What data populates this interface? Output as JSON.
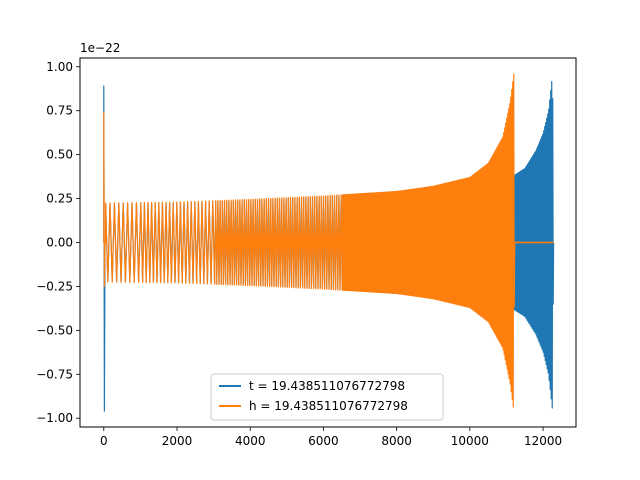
{
  "chart_data": {
    "type": "line",
    "title": "",
    "xlabel": "",
    "ylabel": "",
    "y_offset_label": "1e−22",
    "xlim": [
      -650,
      12900
    ],
    "ylim": [
      -1.05,
      1.05
    ],
    "x_ticks": [
      0,
      2000,
      4000,
      6000,
      8000,
      10000,
      12000
    ],
    "x_tick_labels": [
      "0",
      "2000",
      "4000",
      "6000",
      "8000",
      "10000",
      "12000"
    ],
    "y_ticks": [
      1.0,
      0.75,
      0.5,
      0.25,
      0.0,
      -0.25,
      -0.5,
      -0.75,
      -1.0
    ],
    "y_tick_labels": [
      "1.00",
      "0.75",
      "0.50",
      "0.25",
      "0.00",
      "−0.25",
      "−0.50",
      "−0.75",
      "−1.00"
    ],
    "grid": false,
    "legend_position": "lower-center",
    "series": [
      {
        "name": "t = 19.438511076772798",
        "color": "#1f77b4",
        "x_start": 0,
        "x_end": 12288,
        "spike_at_start": {
          "x": 0,
          "max": 0.89,
          "min": -0.96
        },
        "envelope": [
          [
            50,
            0.22
          ],
          [
            2000,
            0.225
          ],
          [
            4000,
            0.24
          ],
          [
            6000,
            0.26
          ],
          [
            8000,
            0.29
          ],
          [
            9000,
            0.31
          ],
          [
            10000,
            0.36
          ],
          [
            10500,
            0.42
          ],
          [
            11000,
            0.52
          ],
          [
            11200,
            0.38
          ],
          [
            11500,
            0.42
          ],
          [
            11800,
            0.52
          ],
          [
            12000,
            0.62
          ],
          [
            12150,
            0.75
          ],
          [
            12260,
            0.96
          ],
          [
            12288,
            0.0
          ]
        ]
      },
      {
        "name": "h = 19.438511076772798",
        "color": "#ff7f0e",
        "x_start": 0,
        "x_end": 12288,
        "spike_at_start": {
          "x": 0,
          "max": 0.74,
          "min": -0.25
        },
        "envelope": [
          [
            50,
            0.225
          ],
          [
            2000,
            0.23
          ],
          [
            4000,
            0.245
          ],
          [
            6000,
            0.265
          ],
          [
            8000,
            0.29
          ],
          [
            9000,
            0.32
          ],
          [
            10000,
            0.37
          ],
          [
            10500,
            0.45
          ],
          [
            10900,
            0.6
          ],
          [
            11100,
            0.8
          ],
          [
            11200,
            0.96
          ],
          [
            11220,
            0.0
          ],
          [
            12288,
            0.0
          ]
        ]
      }
    ]
  }
}
